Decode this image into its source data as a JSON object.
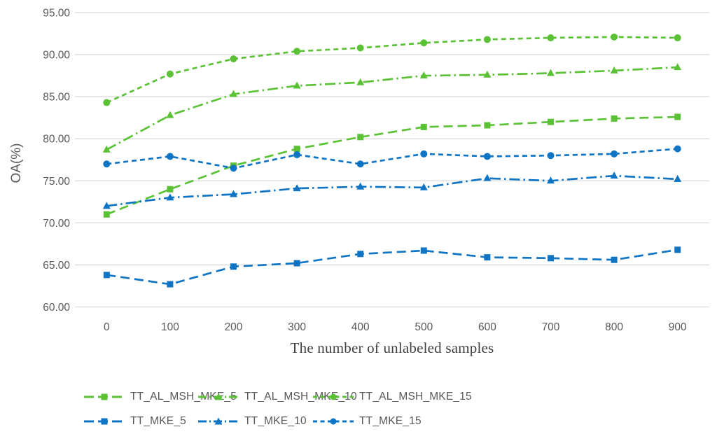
{
  "chart_data": {
    "type": "line",
    "title": "",
    "xlabel": "The number of unlabeled samples",
    "ylabel": "OA(%)",
    "x_categories": [
      "0",
      "100",
      "200",
      "300",
      "400",
      "500",
      "600",
      "700",
      "800",
      "900"
    ],
    "ylim": [
      60,
      95
    ],
    "ytick_step": 5,
    "ytick_decimals": 2,
    "grid": "horizontal",
    "legend_position": "bottom",
    "series": [
      {
        "name": "TT_AL_MSH_MKE_5",
        "color": "#5bc236",
        "marker": "square",
        "dash": "long-dash",
        "values": [
          71.0,
          74.0,
          76.8,
          78.8,
          80.2,
          81.4,
          81.6,
          82.0,
          82.4,
          82.6
        ]
      },
      {
        "name": "TT_AL_MSH_MKE_10",
        "color": "#5bc236",
        "marker": "triangle",
        "dash": "dash-dot",
        "values": [
          78.7,
          82.8,
          85.3,
          86.3,
          86.7,
          87.5,
          87.6,
          87.8,
          88.1,
          88.5
        ]
      },
      {
        "name": "TT_AL_MSH_MKE_15",
        "color": "#5bc236",
        "marker": "circle",
        "dash": "dash",
        "values": [
          84.3,
          87.7,
          89.5,
          90.4,
          90.8,
          91.4,
          91.8,
          92.0,
          92.1,
          92.0
        ]
      },
      {
        "name": "TT_MKE_5",
        "color": "#0f74c4",
        "marker": "square",
        "dash": "long-dash",
        "values": [
          63.8,
          62.7,
          64.8,
          65.2,
          66.3,
          66.7,
          65.9,
          65.8,
          65.6,
          66.8
        ]
      },
      {
        "name": "TT_MKE_10",
        "color": "#0f74c4",
        "marker": "triangle",
        "dash": "dash-dot",
        "values": [
          72.0,
          73.0,
          73.4,
          74.1,
          74.3,
          74.2,
          75.3,
          75.0,
          75.6,
          75.2
        ]
      },
      {
        "name": "TT_MKE_15",
        "color": "#0f74c4",
        "marker": "circle",
        "dash": "dash",
        "values": [
          77.0,
          77.9,
          76.5,
          78.1,
          77.0,
          78.2,
          77.9,
          78.0,
          78.2,
          78.8
        ]
      }
    ]
  },
  "colors": {
    "green": "#5bc236",
    "blue": "#0f74c4",
    "gridline": "#d9d9d9",
    "tick_text": "#595959",
    "axis_title_text": "#3f3f3f"
  }
}
